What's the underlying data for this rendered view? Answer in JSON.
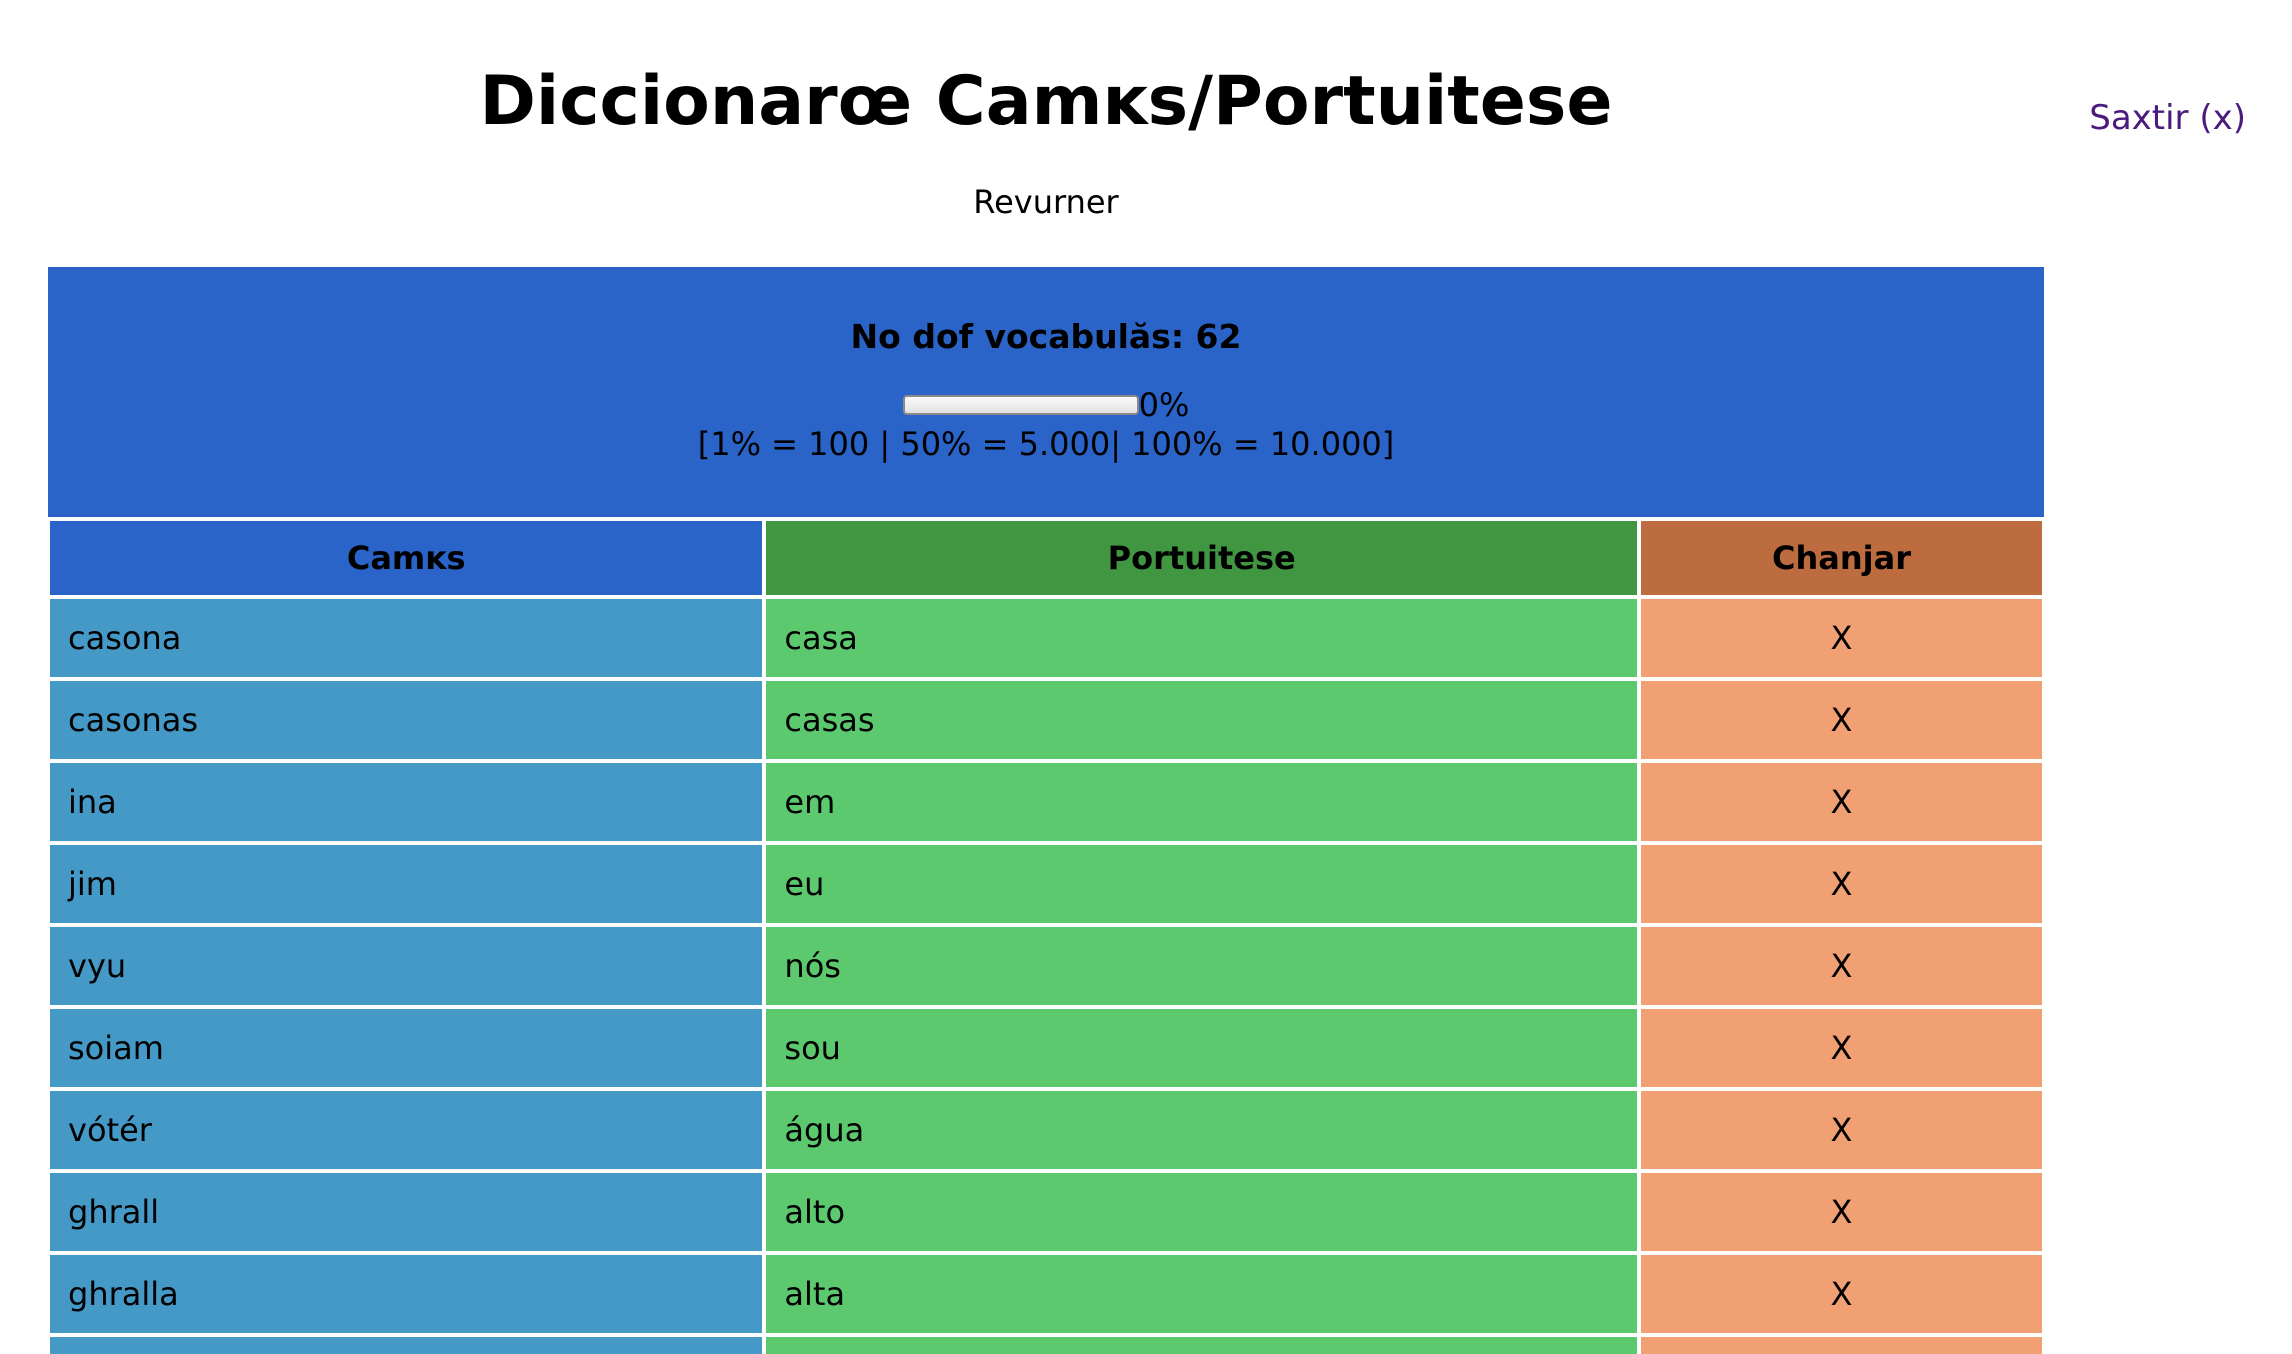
{
  "header": {
    "title": "Diccionarœ Camĸs/Portuitese",
    "logout_label": "Saxtir (x)",
    "back_label": "Revurner"
  },
  "stats": {
    "count_label": "No dof vocabulăs: 62",
    "progress_percent": 0,
    "progress_label": "0%",
    "scale_text": "[1% = 100 | 50% = 5.000| 100% = 10.000]"
  },
  "table": {
    "headers": [
      "Camĸs",
      "Portuitese",
      "Chanjar"
    ],
    "rows": [
      {
        "camks": "casona",
        "portuitese": "casa",
        "action": "X"
      },
      {
        "camks": "casonas",
        "portuitese": "casas",
        "action": "X"
      },
      {
        "camks": "ina",
        "portuitese": "em",
        "action": "X"
      },
      {
        "camks": "jim",
        "portuitese": "eu",
        "action": "X"
      },
      {
        "camks": "vyu",
        "portuitese": "nós",
        "action": "X"
      },
      {
        "camks": "soiam",
        "portuitese": "sou",
        "action": "X"
      },
      {
        "camks": "vótér",
        "portuitese": "água",
        "action": "X"
      },
      {
        "camks": "ghrall",
        "portuitese": "alto",
        "action": "X"
      },
      {
        "camks": "ghralla",
        "portuitese": "alta",
        "action": "X"
      },
      {
        "camks": "",
        "portuitese": "",
        "action": ""
      }
    ]
  },
  "colors": {
    "header_blue": "#2a64c8",
    "header_green": "#419741",
    "header_orange": "#bd6c40",
    "cell_blue": "#4599c7",
    "cell_green": "#5cc96f",
    "cell_orange": "#f0a072",
    "link_purple": "#4b1a7d"
  }
}
